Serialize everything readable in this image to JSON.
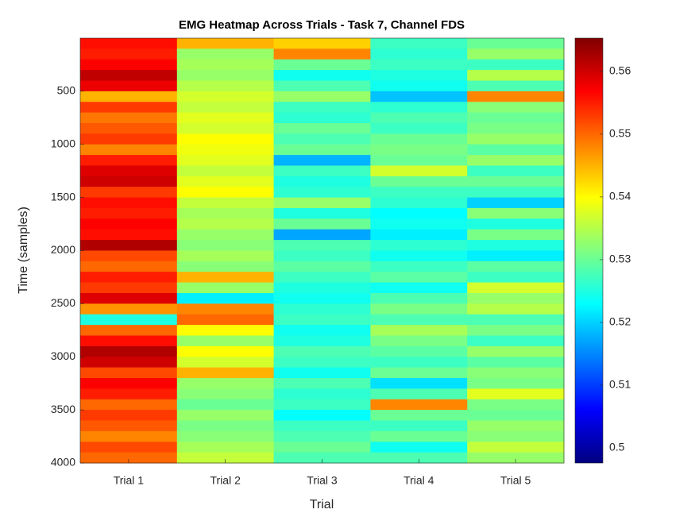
{
  "chart_data": {
    "type": "heatmap",
    "title": "EMG Heatmap Across Trials - Task 7, Channel FDS",
    "xlabel": "Trial",
    "ylabel": "Time (samples)",
    "categories": [
      "Trial 1",
      "Trial 2",
      "Trial 3",
      "Trial 4",
      "Trial 5"
    ],
    "ybins": [
      0,
      100,
      200,
      300,
      400,
      500,
      600,
      700,
      800,
      900,
      1000,
      1100,
      1200,
      1300,
      1400,
      1500,
      1600,
      1700,
      1800,
      1900,
      2000,
      2100,
      2200,
      2300,
      2400,
      2500,
      2600,
      2700,
      2800,
      2900,
      3000,
      3100,
      3200,
      3300,
      3400,
      3500,
      3600,
      3700,
      3800,
      3900,
      4000
    ],
    "values": [
      [
        0.556,
        0.555,
        0.557,
        0.561,
        0.558,
        0.545,
        0.553,
        0.549,
        0.551,
        0.553,
        0.548,
        0.555,
        0.559,
        0.56,
        0.553,
        0.556,
        0.555,
        0.557,
        0.556,
        0.562,
        0.552,
        0.55,
        0.555,
        0.553,
        0.559,
        0.547,
        0.525,
        0.55,
        0.556,
        0.562,
        0.56,
        0.552,
        0.557,
        0.555,
        0.55,
        0.553,
        0.551,
        0.548,
        0.552,
        0.55
      ],
      [
        0.545,
        0.533,
        0.534,
        0.533,
        0.535,
        0.537,
        0.536,
        0.538,
        0.537,
        0.54,
        0.539,
        0.538,
        0.536,
        0.538,
        0.54,
        0.536,
        0.534,
        0.535,
        0.533,
        0.532,
        0.534,
        0.532,
        0.545,
        0.533,
        0.522,
        0.548,
        0.55,
        0.54,
        0.533,
        0.54,
        0.537,
        0.545,
        0.533,
        0.532,
        0.53,
        0.533,
        0.531,
        0.532,
        0.534,
        0.536
      ],
      [
        0.543,
        0.548,
        0.53,
        0.524,
        0.528,
        0.533,
        0.527,
        0.526,
        0.53,
        0.528,
        0.53,
        0.518,
        0.527,
        0.525,
        0.526,
        0.533,
        0.525,
        0.53,
        0.517,
        0.528,
        0.527,
        0.529,
        0.527,
        0.525,
        0.524,
        0.526,
        0.527,
        0.524,
        0.525,
        0.528,
        0.527,
        0.524,
        0.528,
        0.526,
        0.527,
        0.523,
        0.527,
        0.528,
        0.53,
        0.528
      ],
      [
        0.527,
        0.526,
        0.527,
        0.525,
        0.524,
        0.519,
        0.526,
        0.528,
        0.527,
        0.53,
        0.531,
        0.53,
        0.537,
        0.53,
        0.527,
        0.526,
        0.523,
        0.524,
        0.522,
        0.526,
        0.524,
        0.527,
        0.529,
        0.524,
        0.528,
        0.531,
        0.528,
        0.534,
        0.531,
        0.529,
        0.527,
        0.53,
        0.521,
        0.528,
        0.548,
        0.53,
        0.527,
        0.53,
        0.524,
        0.528
      ],
      [
        0.53,
        0.533,
        0.527,
        0.535,
        0.528,
        0.548,
        0.532,
        0.53,
        0.531,
        0.533,
        0.529,
        0.533,
        0.527,
        0.53,
        0.527,
        0.52,
        0.532,
        0.525,
        0.531,
        0.525,
        0.522,
        0.529,
        0.527,
        0.537,
        0.533,
        0.535,
        0.528,
        0.531,
        0.527,
        0.533,
        0.529,
        0.532,
        0.531,
        0.538,
        0.531,
        0.53,
        0.533,
        0.532,
        0.536,
        0.533
      ]
    ],
    "ylim": [
      0,
      4000
    ],
    "yticks": [
      500,
      1000,
      1500,
      2000,
      2500,
      3000,
      3500,
      4000
    ],
    "y_reversed": true,
    "colormap": "jet",
    "clim": [
      0.4976,
      0.5653
    ],
    "cticks": [
      0.5,
      0.51,
      0.52,
      0.53,
      0.54,
      0.55,
      0.56
    ]
  }
}
